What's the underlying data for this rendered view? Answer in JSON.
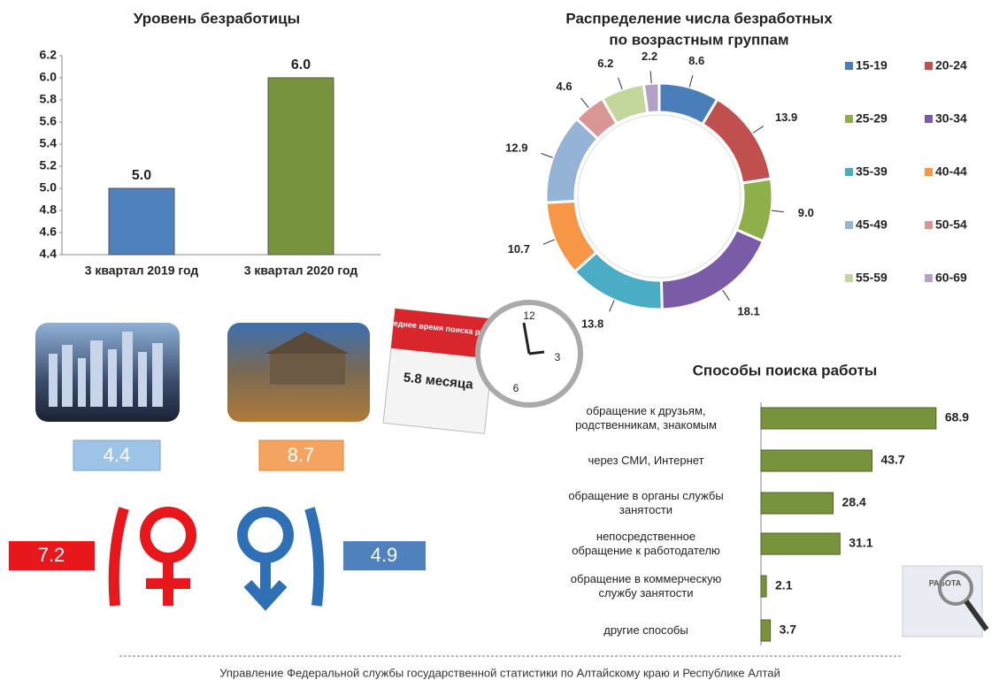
{
  "chart_data": [
    {
      "type": "bar",
      "title": "Уровень безработицы",
      "categories": [
        "3 квартал 2019 год",
        "3 квартал 2020 год"
      ],
      "values": [
        5.0,
        6.0
      ],
      "value_labels": [
        "5.0",
        "6.0"
      ],
      "colors": [
        "#4f81bd",
        "#77933c"
      ],
      "ylim": [
        4.4,
        6.2
      ],
      "yticks": [
        4.4,
        4.6,
        4.8,
        {
          "value": 5,
          "label": "5.0"
        },
        5.2,
        5.4,
        5.6,
        5.8,
        {
          "value": 6,
          "label": "6.0"
        },
        6.2
      ]
    },
    {
      "type": "donut",
      "title": [
        "Распределение числа безработных",
        "по возрастным группам"
      ],
      "categories": [
        "15-19",
        "20-24",
        "25-29",
        "30-34",
        "35-39",
        "40-44",
        "45-49",
        "50-54",
        "55-59",
        "60-69"
      ],
      "values": [
        8.6,
        13.9,
        9.0,
        18.1,
        13.8,
        10.7,
        12.9,
        4.6,
        6.2,
        2.2
      ],
      "value_labels": [
        "8.6",
        "13.9",
        "9.0",
        "18.1",
        "13.8",
        "10.7",
        "12.9",
        "4.6",
        "6.2",
        "2.2"
      ],
      "colors": [
        "#4a7ebb",
        "#c0504d",
        "#8db04b",
        "#7a5ba8",
        "#4bacc6",
        "#f79646",
        "#95b3d7",
        "#d99694",
        "#c3d69b",
        "#b3a2c7"
      ]
    },
    {
      "type": "hbar",
      "title": "Способы поиска работы",
      "categories": [
        "обращение к друзьям,\nродственникам, знакомым",
        "через СМИ, Интернет",
        "обращение в органы службы\nзанятости",
        "непосредственное\nобращение к работодателю",
        "обращение в коммерческую\nслужбу занятости",
        "другие способы"
      ],
      "values": [
        68.9,
        43.7,
        28.4,
        31.1,
        2.1,
        3.7
      ],
      "color": "#77933c",
      "xlim": [
        0,
        70
      ]
    }
  ],
  "infographic": {
    "city": "4.4",
    "village": "8.7",
    "women": "7.2",
    "men": "4.9",
    "calendar_caption": "Среднее время поиска работы",
    "calendar_value": "5.8 месяца",
    "clock_numbers": [
      "12",
      "3",
      "6"
    ],
    "job_sign": "РАБОТА"
  },
  "footer": "Управление Федеральной службы государственной статистики по Алтайскому краю и Республике Алтай"
}
